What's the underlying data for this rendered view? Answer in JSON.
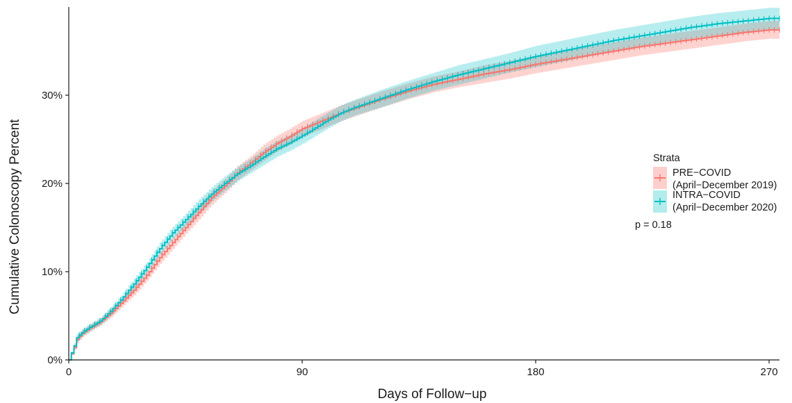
{
  "chart_data": {
    "type": "line",
    "title": "",
    "xlabel": "Days of Follow−up",
    "ylabel": "Cumulative Colonoscopy Percent",
    "xlim": [
      0,
      274
    ],
    "ylim": [
      0,
      40
    ],
    "x_ticks": [
      0,
      90,
      180,
      270
    ],
    "x_tick_labels": [
      "0",
      "90",
      "180",
      "270"
    ],
    "y_ticks": [
      0,
      10,
      20,
      30
    ],
    "y_tick_labels": [
      "0%",
      "10%",
      "20%",
      "30%"
    ],
    "grid": false,
    "legend": {
      "title": "Strata",
      "placement": "right",
      "entries": [
        {
          "line1": "PRE−COVID",
          "line2": "(April−December 2019)",
          "color": "#F8766D",
          "band_color": "#F8766D"
        },
        {
          "line1": "INTRA−COVID",
          "line2": "(April−December 2020)",
          "color": "#00BFC4",
          "band_color": "#00BFC4"
        }
      ]
    },
    "annotation": "p = 0.18",
    "series": [
      {
        "name": "PRE−COVID (April−December 2019)",
        "color": "#F8766D",
        "x": [
          0,
          2,
          3,
          5,
          8,
          12,
          16,
          20,
          25,
          30,
          35,
          40,
          45,
          50,
          55,
          60,
          65,
          70,
          75,
          80,
          85,
          90,
          95,
          100,
          105,
          110,
          120,
          130,
          140,
          150,
          160,
          170,
          180,
          190,
          200,
          210,
          220,
          230,
          240,
          250,
          260,
          270,
          274
        ],
        "y": [
          0,
          1.4,
          2.3,
          3.0,
          3.6,
          4.3,
          5.3,
          6.4,
          7.9,
          9.6,
          11.6,
          13.3,
          15.0,
          16.7,
          18.4,
          19.7,
          21.2,
          22.3,
          23.5,
          24.5,
          25.3,
          26.2,
          26.8,
          27.4,
          28.0,
          28.5,
          29.5,
          30.4,
          31.2,
          31.8,
          32.4,
          32.9,
          33.5,
          34.0,
          34.5,
          35.0,
          35.5,
          35.9,
          36.3,
          36.7,
          37.1,
          37.4,
          37.4
        ],
        "lower": [
          0,
          1.1,
          1.9,
          2.6,
          3.2,
          3.9,
          4.8,
          5.9,
          7.3,
          9.0,
          10.9,
          12.6,
          14.3,
          15.9,
          17.6,
          18.9,
          20.4,
          21.5,
          22.6,
          23.6,
          24.4,
          25.3,
          25.9,
          26.5,
          27.1,
          27.6,
          28.6,
          29.5,
          30.3,
          30.9,
          31.4,
          31.9,
          32.5,
          33.0,
          33.5,
          34.0,
          34.5,
          34.9,
          35.3,
          35.7,
          36.1,
          36.4,
          36.4
        ],
        "upper": [
          0,
          1.7,
          2.7,
          3.4,
          4.0,
          4.7,
          5.8,
          6.9,
          8.5,
          10.2,
          12.3,
          14.0,
          15.7,
          17.5,
          19.2,
          20.5,
          22.0,
          23.1,
          24.4,
          25.4,
          26.2,
          27.1,
          27.7,
          28.3,
          28.9,
          29.4,
          30.4,
          31.3,
          32.1,
          32.7,
          33.4,
          33.9,
          34.5,
          35.0,
          35.5,
          36.0,
          36.5,
          36.9,
          37.3,
          37.7,
          38.1,
          38.4,
          38.4
        ]
      },
      {
        "name": "INTRA−COVID (April−December 2020)",
        "color": "#00BFC4",
        "x": [
          0,
          2,
          3,
          5,
          8,
          12,
          16,
          20,
          25,
          30,
          35,
          40,
          45,
          50,
          55,
          60,
          65,
          70,
          75,
          80,
          85,
          90,
          95,
          100,
          105,
          110,
          120,
          130,
          140,
          150,
          160,
          170,
          180,
          190,
          200,
          210,
          220,
          230,
          240,
          250,
          260,
          270,
          274
        ],
        "y": [
          0,
          1.6,
          2.5,
          3.1,
          3.7,
          4.4,
          5.5,
          6.8,
          8.6,
          10.5,
          12.6,
          14.4,
          15.9,
          17.4,
          18.8,
          20.0,
          21.1,
          22.0,
          23.0,
          23.9,
          24.6,
          25.4,
          26.3,
          27.2,
          28.0,
          28.6,
          29.6,
          30.6,
          31.5,
          32.3,
          33.0,
          33.7,
          34.4,
          35.0,
          35.6,
          36.2,
          36.7,
          37.2,
          37.7,
          38.1,
          38.4,
          38.7,
          38.7
        ],
        "lower": [
          0,
          1.3,
          2.1,
          2.7,
          3.3,
          4.0,
          5.0,
          6.3,
          8.0,
          9.9,
          11.9,
          13.7,
          15.2,
          16.6,
          18.0,
          19.2,
          20.3,
          21.2,
          22.1,
          23.0,
          23.7,
          24.5,
          25.4,
          26.3,
          27.1,
          27.7,
          28.6,
          29.6,
          30.5,
          31.2,
          31.9,
          32.6,
          33.2,
          33.8,
          34.4,
          35.0,
          35.5,
          36.0,
          36.4,
          36.8,
          37.1,
          37.4,
          37.4
        ],
        "upper": [
          0,
          1.9,
          2.9,
          3.5,
          4.1,
          4.8,
          6.0,
          7.3,
          9.2,
          11.1,
          13.3,
          15.1,
          16.6,
          18.2,
          19.6,
          20.8,
          21.9,
          22.8,
          23.9,
          24.8,
          25.5,
          26.3,
          27.2,
          28.1,
          28.9,
          29.5,
          30.6,
          31.6,
          32.5,
          33.4,
          34.1,
          34.8,
          35.6,
          36.2,
          36.8,
          37.4,
          37.9,
          38.4,
          38.9,
          39.3,
          39.6,
          39.9,
          39.9
        ]
      }
    ]
  }
}
